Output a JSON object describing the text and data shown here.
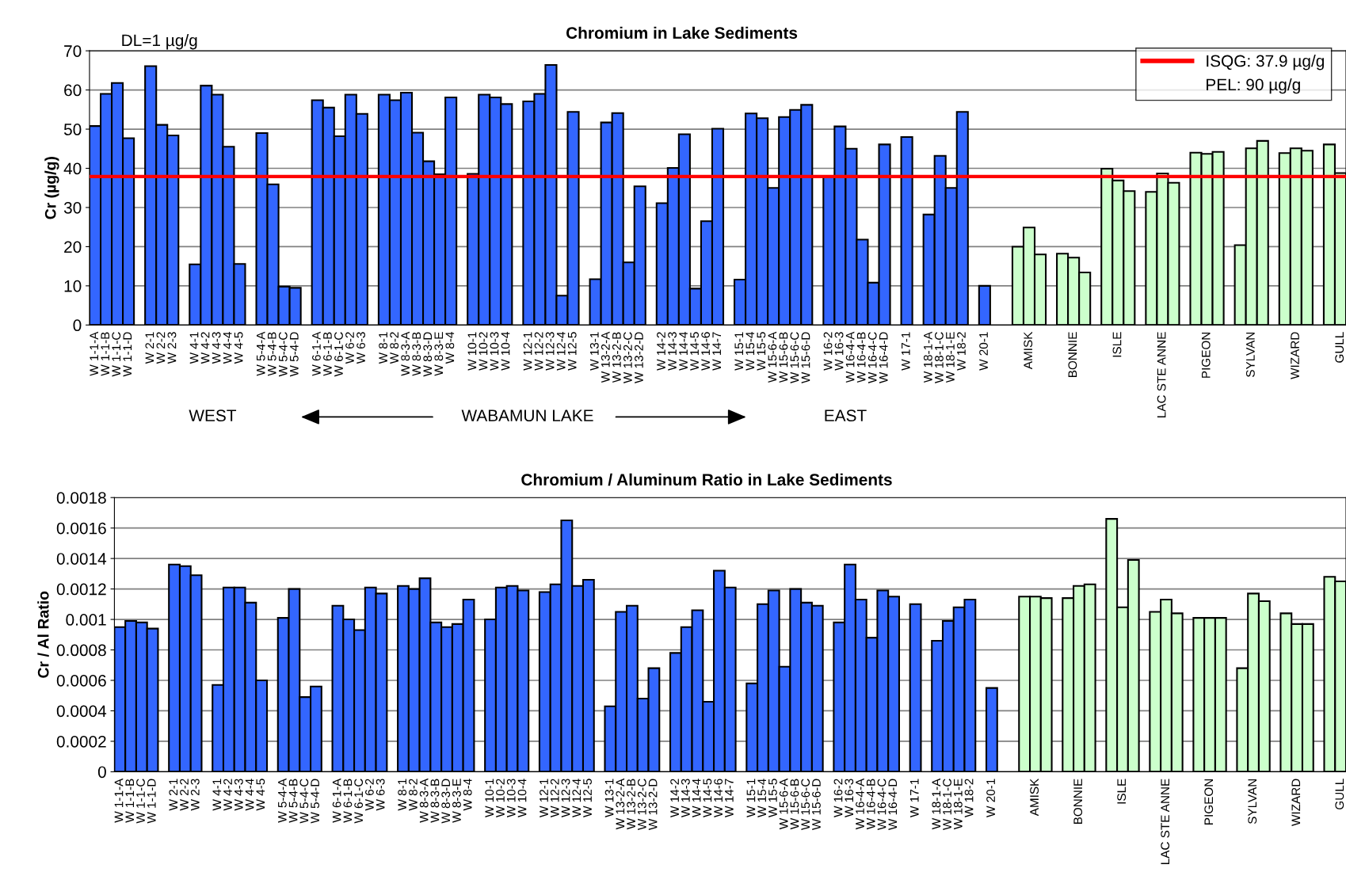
{
  "chart_data": [
    {
      "type": "bar",
      "title": "Chromium in Lake Sediments",
      "ylabel": "Cr (µg/g)",
      "categories": [
        "W 1-1-A",
        "W 1-1-B",
        "W 1-1-C",
        "W 1-1-D",
        null,
        "W 2-1",
        "W 2-2",
        "W 2-3",
        null,
        "W 4-1",
        "W 4-2",
        "W 4-3",
        "W 4-4",
        "W 4-5",
        null,
        "W 5-4-A",
        "W 5-4-B",
        "W 5-4-C",
        "W 5-4-D",
        null,
        "W 6-1-A",
        "W 6-1-B",
        "W 6-1-C",
        "W 6-2",
        "W 6-3",
        null,
        "W 8-1",
        "W 8-2",
        "W 8-3-A",
        "W 8-3-B",
        "W 8-3-D",
        "W 8-3-E",
        "W 8-4",
        null,
        "W 10-1",
        "W 10-2",
        "W 10-3",
        "W 10-4",
        null,
        "W 12-1",
        "W 12-2",
        "W 12-3",
        "W 12-4",
        "W 12-5",
        null,
        "W 13-1",
        "W 13-2-A",
        "W 13-2-B",
        "W 13-2-C",
        "W 13-2-D",
        null,
        "W 14-2",
        "W 14-3",
        "W 14-4",
        "W 14-5",
        "W 14-6",
        "W 14-7",
        null,
        "W 15-1",
        "W 15-4",
        "W 15-5",
        "W 15-6-A",
        "W 15-6-B",
        "W 15-6-C",
        "W 15-6-D",
        null,
        "W 16-2",
        "W 16-3",
        "W 16-4-A",
        "W 16-4-B",
        "W 16-4-C",
        "W 16-4-D",
        null,
        "W 17-1",
        null,
        "W 18-1-A",
        "W 18-1-C",
        "W 18-1-E",
        "W 18-2",
        null,
        "W 20-1",
        null,
        null,
        null,
        "AMISK",
        null,
        null,
        null,
        "BONNIE",
        null,
        null,
        null,
        "ISLE",
        null,
        null,
        null,
        "LAC STE ANNE",
        null,
        null,
        null,
        "PIGEON",
        null,
        null,
        null,
        "SYLVAN",
        null,
        null,
        null,
        "WIZARD",
        null,
        null,
        null,
        "GULL"
      ],
      "values": [
        50.8,
        59.0,
        61.8,
        47.7,
        null,
        66.1,
        51.1,
        48.4,
        null,
        15.5,
        61.1,
        58.8,
        45.5,
        15.6,
        null,
        49.0,
        35.9,
        9.8,
        9.5,
        null,
        57.4,
        55.5,
        48.2,
        58.8,
        53.9,
        null,
        58.8,
        57.4,
        59.3,
        49.1,
        41.8,
        38.5,
        58.1,
        null,
        38.6,
        58.8,
        58.1,
        56.4,
        null,
        57.1,
        59.0,
        66.4,
        7.5,
        54.4,
        null,
        11.7,
        51.7,
        54.1,
        16.0,
        35.4,
        null,
        31.1,
        40.1,
        48.7,
        9.3,
        26.5,
        50.1,
        null,
        11.6,
        54.0,
        52.8,
        35.0,
        53.1,
        54.9,
        56.2,
        null,
        38.0,
        50.7,
        45.0,
        21.8,
        10.8,
        46.1,
        null,
        48.0,
        null,
        28.2,
        43.2,
        35.0,
        54.4,
        null,
        10.0,
        null,
        null,
        20.0,
        24.9,
        18.0,
        null,
        18.2,
        17.2,
        13.4,
        null,
        39.9,
        36.9,
        34.2,
        null,
        34.0,
        38.7,
        36.3,
        null,
        44.0,
        43.7,
        44.2,
        null,
        20.4,
        45.1,
        47.0,
        null,
        43.9,
        45.1,
        44.5,
        null,
        46.1,
        38.8
      ],
      "colors": [
        "#3366ff",
        "#3366ff",
        "#3366ff",
        "#3366ff",
        null,
        "#3366ff",
        "#3366ff",
        "#3366ff",
        null,
        "#3366ff",
        "#3366ff",
        "#3366ff",
        "#3366ff",
        "#3366ff",
        null,
        "#3366ff",
        "#3366ff",
        "#3366ff",
        "#3366ff",
        null,
        "#3366ff",
        "#3366ff",
        "#3366ff",
        "#3366ff",
        "#3366ff",
        null,
        "#3366ff",
        "#3366ff",
        "#3366ff",
        "#3366ff",
        "#3366ff",
        "#3366ff",
        "#3366ff",
        null,
        "#3366ff",
        "#3366ff",
        "#3366ff",
        "#3366ff",
        null,
        "#3366ff",
        "#3366ff",
        "#3366ff",
        "#3366ff",
        "#3366ff",
        null,
        "#3366ff",
        "#3366ff",
        "#3366ff",
        "#3366ff",
        "#3366ff",
        null,
        "#3366ff",
        "#3366ff",
        "#3366ff",
        "#3366ff",
        "#3366ff",
        "#3366ff",
        null,
        "#3366ff",
        "#3366ff",
        "#3366ff",
        "#3366ff",
        "#3366ff",
        "#3366ff",
        "#3366ff",
        null,
        "#3366ff",
        "#3366ff",
        "#3366ff",
        "#3366ff",
        "#3366ff",
        "#3366ff",
        null,
        "#3366ff",
        null,
        "#3366ff",
        "#3366ff",
        "#3366ff",
        "#3366ff",
        null,
        "#3366ff",
        null,
        null,
        "#ccffcc",
        "#ccffcc",
        "#ccffcc",
        null,
        "#ccffcc",
        "#ccffcc",
        "#ccffcc",
        null,
        "#ccffcc",
        "#ccffcc",
        "#ccffcc",
        null,
        "#ccffcc",
        "#ccffcc",
        "#ccffcc",
        null,
        "#ccffcc",
        "#ccffcc",
        "#ccffcc",
        null,
        "#ccffcc",
        "#ccffcc",
        "#ccffcc",
        null,
        "#ccffcc",
        "#ccffcc",
        "#ccffcc",
        null,
        "#ccffcc",
        "#ccffcc"
      ],
      "ylim": [
        0,
        70
      ],
      "yticks": [
        0,
        10,
        20,
        30,
        40,
        50,
        60,
        70
      ],
      "grid": "y",
      "legend": "top right",
      "ref_lines": [
        {
          "axis": "y",
          "value": 37.9,
          "label": "ISQG: 37.9 µg/g",
          "color": "#ff0000"
        }
      ],
      "annotations": [
        "DL=1 µg/g",
        "PEL: 90 µg/g",
        "WEST",
        "WABAMUN LAKE",
        "EAST"
      ]
    },
    {
      "type": "bar",
      "title": "Chromium / Aluminum Ratio in Lake Sediments",
      "ylabel": "Cr / Al Ratio",
      "categories": [
        "W 1-1-A",
        "W 1-1-B",
        "W 1-1-C",
        "W 1-1-D",
        null,
        "W 2-1",
        "W 2-2",
        "W 2-3",
        null,
        "W 4-1",
        "W 4-2",
        "W 4-3",
        "W 4-4",
        "W 4-5",
        null,
        "W 5-4-A",
        "W 5-4-B",
        "W 5-4-C",
        "W 5-4-D",
        null,
        "W 6-1-A",
        "W 6-1-B",
        "W 6-1-C",
        "W 6-2",
        "W 6-3",
        null,
        "W 8-1",
        "W 8-2",
        "W 8-3-A",
        "W 8-3-B",
        "W 8-3-D",
        "W 8-3-E",
        "W 8-4",
        null,
        "W 10-1",
        "W 10-2",
        "W 10-3",
        "W 10-4",
        null,
        "W 12-1",
        "W 12-2",
        "W 12-3",
        "W 12-4",
        "W 12-5",
        null,
        "W 13-1",
        "W 13-2-A",
        "W 13-2-B",
        "W 13-2-C",
        "W 13-2-D",
        null,
        "W 14-2",
        "W 14-3",
        "W 14-4",
        "W 14-5",
        "W 14-6",
        "W 14-7",
        null,
        "W 15-1",
        "W 15-4",
        "W 15-5",
        "W 15-6-A",
        "W 15-6-B",
        "W 15-6-C",
        "W 15-6-D",
        null,
        "W 16-2",
        "W 16-3",
        "W 16-4-A",
        "W 16-4-B",
        "W 16-4-C",
        "W 16-4-D",
        null,
        "W 17-1",
        null,
        "W 18-1-A",
        "W 18-1-C",
        "W 18-1-E",
        "W 18-2",
        null,
        "W 20-1",
        null,
        null,
        null,
        "AMISK",
        null,
        null,
        null,
        "BONNIE",
        null,
        null,
        null,
        "ISLE",
        null,
        null,
        null,
        "LAC STE ANNE",
        null,
        null,
        null,
        "PIGEON",
        null,
        null,
        null,
        "SYLVAN",
        null,
        null,
        null,
        "WIZARD",
        null,
        null,
        null,
        "GULL"
      ],
      "values": [
        0.00095,
        0.00099,
        0.00098,
        0.00094,
        null,
        0.00136,
        0.00135,
        0.00129,
        null,
        0.00057,
        0.00121,
        0.00121,
        0.00111,
        0.0006,
        null,
        0.00101,
        0.0012,
        0.00049,
        0.00056,
        null,
        0.00109,
        0.001,
        0.00093,
        0.00121,
        0.00117,
        null,
        0.00122,
        0.0012,
        0.00127,
        0.00098,
        0.00095,
        0.00097,
        0.00113,
        null,
        0.001,
        0.00121,
        0.00122,
        0.00119,
        null,
        0.00118,
        0.00123,
        0.00165,
        0.00122,
        0.00126,
        null,
        0.00043,
        0.00105,
        0.00109,
        0.00048,
        0.00068,
        null,
        0.00078,
        0.00095,
        0.00106,
        0.00046,
        0.00132,
        0.00121,
        null,
        0.00058,
        0.0011,
        0.00119,
        0.00069,
        0.0012,
        0.00111,
        0.00109,
        null,
        0.00098,
        0.00136,
        0.00113,
        0.00088,
        0.00119,
        0.00115,
        null,
        0.0011,
        null,
        0.00086,
        0.00099,
        0.00108,
        0.00113,
        null,
        0.00055,
        null,
        null,
        0.00115,
        0.00115,
        0.00114,
        null,
        0.00114,
        0.00122,
        0.00123,
        null,
        0.00166,
        0.00108,
        0.00139,
        null,
        0.00105,
        0.00113,
        0.00104,
        null,
        0.00101,
        0.00101,
        0.00101,
        null,
        0.00068,
        0.00117,
        0.00112,
        null,
        0.00104,
        0.00097,
        0.00097,
        null,
        0.00128,
        0.00125
      ],
      "colors": [
        "#3366ff",
        "#3366ff",
        "#3366ff",
        "#3366ff",
        null,
        "#3366ff",
        "#3366ff",
        "#3366ff",
        null,
        "#3366ff",
        "#3366ff",
        "#3366ff",
        "#3366ff",
        "#3366ff",
        null,
        "#3366ff",
        "#3366ff",
        "#3366ff",
        "#3366ff",
        null,
        "#3366ff",
        "#3366ff",
        "#3366ff",
        "#3366ff",
        "#3366ff",
        null,
        "#3366ff",
        "#3366ff",
        "#3366ff",
        "#3366ff",
        "#3366ff",
        "#3366ff",
        "#3366ff",
        null,
        "#3366ff",
        "#3366ff",
        "#3366ff",
        "#3366ff",
        null,
        "#3366ff",
        "#3366ff",
        "#3366ff",
        "#3366ff",
        "#3366ff",
        null,
        "#3366ff",
        "#3366ff",
        "#3366ff",
        "#3366ff",
        "#3366ff",
        null,
        "#3366ff",
        "#3366ff",
        "#3366ff",
        "#3366ff",
        "#3366ff",
        "#3366ff",
        null,
        "#3366ff",
        "#3366ff",
        "#3366ff",
        "#3366ff",
        "#3366ff",
        "#3366ff",
        "#3366ff",
        null,
        "#3366ff",
        "#3366ff",
        "#3366ff",
        "#3366ff",
        "#3366ff",
        "#3366ff",
        null,
        "#3366ff",
        null,
        "#3366ff",
        "#3366ff",
        "#3366ff",
        "#3366ff",
        null,
        "#3366ff",
        null,
        null,
        "#ccffcc",
        "#ccffcc",
        "#ccffcc",
        null,
        "#ccffcc",
        "#ccffcc",
        "#ccffcc",
        null,
        "#ccffcc",
        "#ccffcc",
        "#ccffcc",
        null,
        "#ccffcc",
        "#ccffcc",
        "#ccffcc",
        null,
        "#ccffcc",
        "#ccffcc",
        "#ccffcc",
        null,
        "#ccffcc",
        "#ccffcc",
        "#ccffcc",
        null,
        "#ccffcc",
        "#ccffcc",
        "#ccffcc",
        null,
        "#ccffcc",
        "#ccffcc"
      ],
      "ylim": [
        0,
        0.0018
      ],
      "yticks": [
        0,
        0.0002,
        0.0004,
        0.0006,
        0.0008,
        0.001,
        0.0012,
        0.0014,
        0.0016,
        0.0018
      ],
      "grid": "y"
    }
  ]
}
